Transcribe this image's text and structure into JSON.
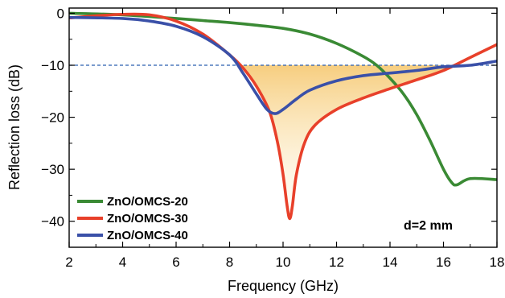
{
  "chart_data": {
    "type": "line",
    "xlabel": "Frequency (GHz)",
    "ylabel": "Reflection loss (dB)",
    "xlim": [
      2,
      18
    ],
    "ylim": [
      -45,
      1
    ],
    "x_ticks": [
      2,
      4,
      6,
      8,
      10,
      12,
      14,
      16,
      18
    ],
    "y_ticks": [
      0,
      -10,
      -20,
      -30,
      -40
    ],
    "y_tick_labels": [
      "0",
      "−10",
      "−20",
      "−30",
      "−40"
    ],
    "reference_line": {
      "y": -10,
      "style": "dashed",
      "color": "#2c5fb0"
    },
    "highlight_region": {
      "between": "y=-10 and series ZnO/OMCS-30",
      "color": "#f5b84b"
    },
    "annotation": "d=2 mm",
    "legend_position": "bottom-left",
    "series": [
      {
        "name": "ZnO/OMCS-20",
        "color": "#3a8a34",
        "points": [
          [
            2,
            0
          ],
          [
            4,
            -0.3
          ],
          [
            6,
            -1.0
          ],
          [
            7,
            -1.4
          ],
          [
            8,
            -1.8
          ],
          [
            9,
            -2.3
          ],
          [
            10,
            -2.9
          ],
          [
            11,
            -4
          ],
          [
            12,
            -5.8
          ],
          [
            13,
            -8.3
          ],
          [
            13.5,
            -10
          ],
          [
            14,
            -12.5
          ],
          [
            14.5,
            -15.5
          ],
          [
            15,
            -19.5
          ],
          [
            15.5,
            -24.5
          ],
          [
            16,
            -30
          ],
          [
            16.3,
            -32.5
          ],
          [
            16.5,
            -33
          ],
          [
            17,
            -31.8
          ],
          [
            18,
            -32
          ]
        ]
      },
      {
        "name": "ZnO/OMCS-30",
        "color": "#e8402a",
        "points": [
          [
            2,
            -0.9
          ],
          [
            3,
            -0.5
          ],
          [
            4,
            -0.2
          ],
          [
            5,
            -0.3
          ],
          [
            6,
            -1.5
          ],
          [
            7,
            -4
          ],
          [
            8,
            -8
          ],
          [
            8.5,
            -10.5
          ],
          [
            9,
            -14
          ],
          [
            9.5,
            -19
          ],
          [
            9.8,
            -25
          ],
          [
            10.0,
            -31
          ],
          [
            10.15,
            -37
          ],
          [
            10.25,
            -39.5
          ],
          [
            10.35,
            -37
          ],
          [
            10.5,
            -31
          ],
          [
            10.8,
            -25
          ],
          [
            11.2,
            -21.5
          ],
          [
            12,
            -18.5
          ],
          [
            13,
            -16.3
          ],
          [
            14,
            -14.5
          ],
          [
            15,
            -12.8
          ],
          [
            16,
            -11
          ],
          [
            17,
            -8.5
          ],
          [
            18,
            -6
          ]
        ]
      },
      {
        "name": "ZnO/OMCS-40",
        "color": "#3a50a8",
        "points": [
          [
            2,
            -0.8
          ],
          [
            4,
            -1
          ],
          [
            5,
            -1.5
          ],
          [
            6,
            -2.5
          ],
          [
            7,
            -4.5
          ],
          [
            8,
            -8
          ],
          [
            8.5,
            -11.5
          ],
          [
            9,
            -15.5
          ],
          [
            9.4,
            -18.5
          ],
          [
            9.7,
            -19.3
          ],
          [
            10,
            -18.5
          ],
          [
            10.5,
            -16.5
          ],
          [
            11,
            -14.8
          ],
          [
            12,
            -13
          ],
          [
            13,
            -12
          ],
          [
            14,
            -11.5
          ],
          [
            15,
            -11
          ],
          [
            16,
            -10.3
          ],
          [
            17,
            -10
          ],
          [
            18,
            -9.2
          ]
        ]
      }
    ]
  }
}
